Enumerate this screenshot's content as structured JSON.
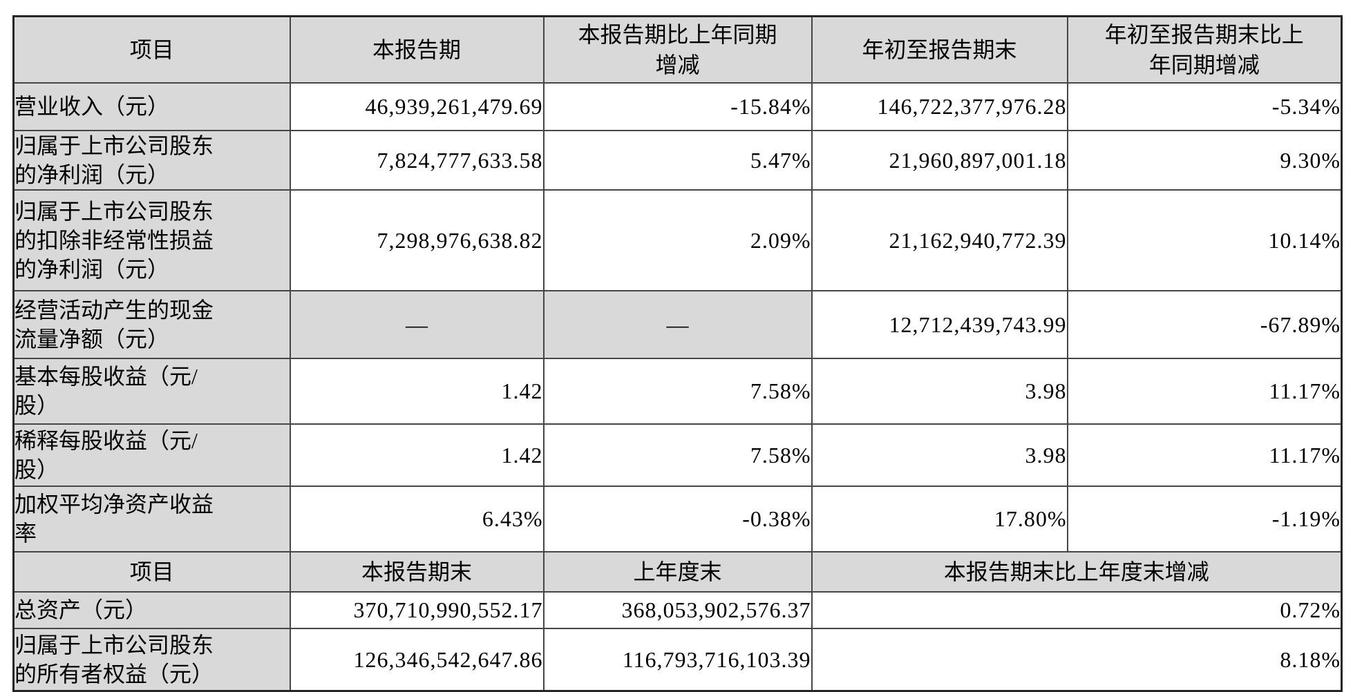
{
  "colors": {
    "cell_bg_gray": "#d9d9d9",
    "border_inner": "#454545",
    "border_outer": "#262626",
    "text": "#000000",
    "page_bg": "#ffffff"
  },
  "period_section": {
    "columns": [
      "项目",
      "本报告期",
      "本报告期比上年同期\n增减",
      "年初至报告期末",
      "年初至报告期末比上\n年同期增减"
    ],
    "rows": [
      {
        "label": "营业收入（元）",
        "values": [
          "46,939,261,479.69",
          "-15.84%",
          "146,722,377,976.28",
          "-5.34%"
        ]
      },
      {
        "label": "归属于上市公司股东\n的净利润（元）",
        "values": [
          "7,824,777,633.58",
          "5.47%",
          "21,960,897,001.18",
          "9.30%"
        ]
      },
      {
        "label": "归属于上市公司股东\n的扣除非经常性损益\n的净利润（元）",
        "values": [
          "7,298,976,638.82",
          "2.09%",
          "21,162,940,772.39",
          "10.14%"
        ]
      },
      {
        "label": "经营活动产生的现金\n流量净额（元）",
        "values": [
          "—",
          "—",
          "12,712,439,743.99",
          "-67.89%"
        ]
      },
      {
        "label": "基本每股收益（元/\n股）",
        "values": [
          "1.42",
          "7.58%",
          "3.98",
          "11.17%"
        ]
      },
      {
        "label": "稀释每股收益（元/\n股）",
        "values": [
          "1.42",
          "7.58%",
          "3.98",
          "11.17%"
        ]
      },
      {
        "label": "加权平均净资产收益\n率",
        "values": [
          "6.43%",
          "-0.38%",
          "17.80%",
          "-1.19%"
        ]
      }
    ]
  },
  "yearend_section": {
    "columns": [
      "项目",
      "本报告期末",
      "上年度末",
      "本报告期末比上年度末增减"
    ],
    "rows": [
      {
        "label": "总资产（元）",
        "values": [
          "370,710,990,552.17",
          "368,053,902,576.37",
          "0.72%"
        ]
      },
      {
        "label": "归属于上市公司股东\n的所有者权益（元）",
        "values": [
          "126,346,542,647.86",
          "116,793,716,103.39",
          "8.18%"
        ]
      }
    ]
  }
}
